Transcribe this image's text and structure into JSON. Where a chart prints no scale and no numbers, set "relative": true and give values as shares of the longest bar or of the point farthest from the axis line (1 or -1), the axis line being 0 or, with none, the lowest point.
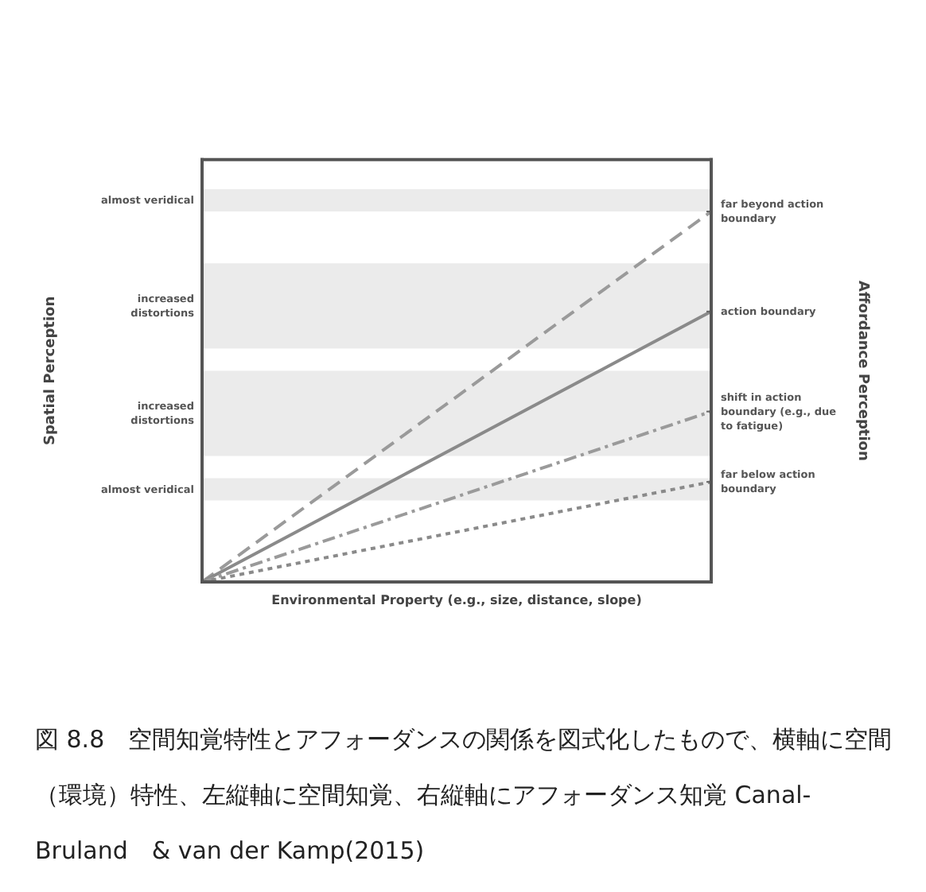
{
  "chart_data": {
    "type": "line",
    "relative": true,
    "categories": [
      null,
      null
    ],
    "xlabel": "Environmental Property (e.g., size, distance, slope)",
    "ylabel": "Spatial Perception",
    "y2label": "Affordance Perception",
    "series": [
      {
        "name": "far beyond action boundary",
        "color": "#9a9a9a",
        "line_style": "dashed",
        "values": [
          0,
          1
        ]
      },
      {
        "name": "action boundary",
        "color": "#8a8a8a",
        "line_style": "solid",
        "values": [
          0,
          0.73
        ]
      },
      {
        "name": "shift in action boundary (e.g., due to fatigue)",
        "color": "#9a9a9a",
        "line_style": "dashdot",
        "values": [
          0,
          0.46
        ]
      },
      {
        "name": "far below action boundary",
        "color": "#8a8a8a",
        "line_style": "dotted",
        "values": [
          0,
          0.27
        ]
      }
    ],
    "bands": [
      {
        "axis": "y",
        "from": 1.0,
        "to": 1.06,
        "label": "almost veridical",
        "color": "#ebebeb"
      },
      {
        "axis": "y",
        "from": 0.63,
        "to": 0.86,
        "label": "increased distortions",
        "color": "#ebebeb"
      },
      {
        "axis": "y",
        "from": 0.34,
        "to": 0.57,
        "label": "increased distortions",
        "color": "#ebebeb"
      },
      {
        "axis": "y",
        "from": 0.22,
        "to": 0.28,
        "label": "almost veridical",
        "color": "#ebebeb"
      }
    ],
    "annotations": [
      "図 8.8　空間知覚特性とアフォーダンスの関係を図式化したもので、横軸に空間（環境）特性、左縦軸に空間知覚、右縦軸にアフォーダンス知覚 Canal-Bruland　& van der Kamp(2015)"
    ]
  }
}
